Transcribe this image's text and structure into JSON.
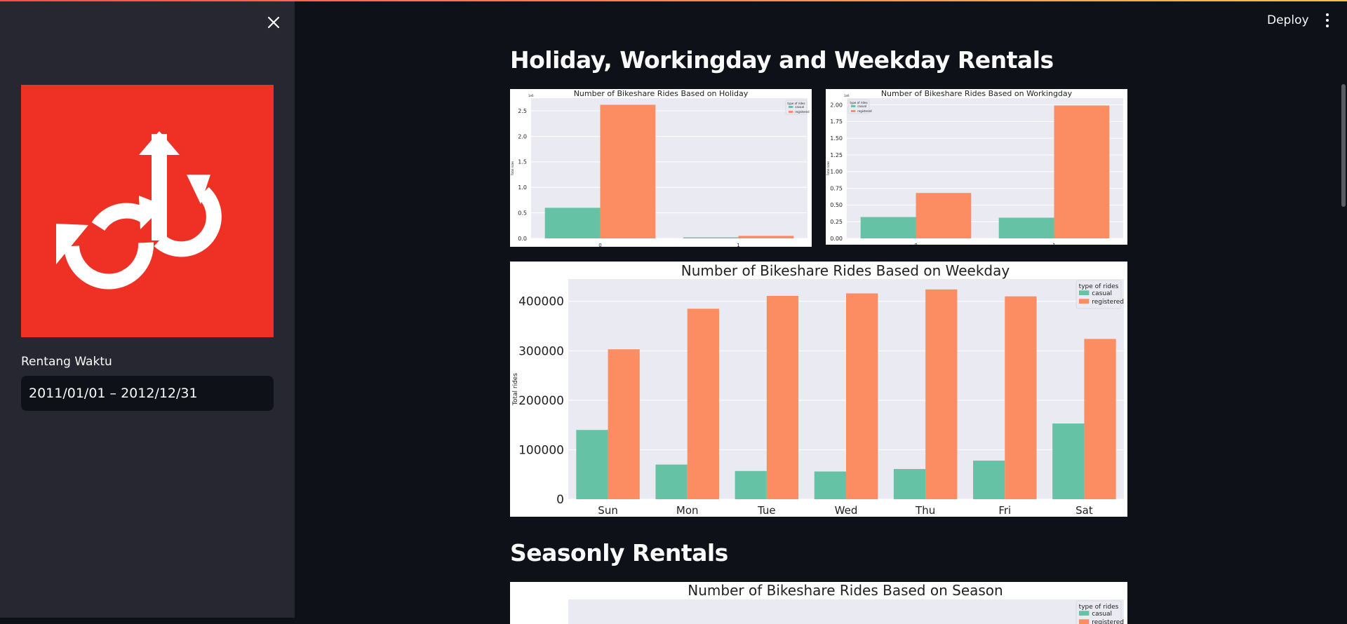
{
  "sidebar": {
    "date_label": "Rentang Waktu",
    "date_value": "2011/01/01 – 2012/12/31",
    "close_icon": "close-icon",
    "logo_icon": "bikeshare-logo-icon"
  },
  "header": {
    "deploy_label": "Deploy",
    "menu_icon": "kebab-menu-icon"
  },
  "main": {
    "section1_title": "Holiday, Workingday and Weekday Rentals",
    "section2_title": "Seasonly Rentals"
  },
  "colors": {
    "casual": "#66c2a5",
    "registered": "#fc8d62",
    "accent": "#ef3125"
  },
  "chart_data": [
    {
      "type": "bar",
      "title": "Number of Bikeshare Rides Based on Holiday",
      "ylabel": "Total rides",
      "exponent": "1e6",
      "legend_title": "type of rides",
      "legend_position": "top-right",
      "categories": [
        "0",
        "1"
      ],
      "yticks": [
        "0.0",
        "0.5",
        "1.0",
        "1.5",
        "2.0",
        "2.5"
      ],
      "ylim": [
        0,
        2.75
      ],
      "series": [
        {
          "name": "casual",
          "values": [
            0.6,
            0.02
          ]
        },
        {
          "name": "registered",
          "values": [
            2.62,
            0.05
          ]
        }
      ]
    },
    {
      "type": "bar",
      "title": "Number of Bikeshare Rides Based on Workingday",
      "ylabel": "Total rides",
      "exponent": "1e6",
      "legend_title": "type of rides",
      "legend_position": "top-left",
      "categories": [
        "0",
        "1"
      ],
      "yticks": [
        "0.00",
        "0.25",
        "0.50",
        "0.75",
        "1.00",
        "1.25",
        "1.50",
        "1.75",
        "2.00"
      ],
      "ylim": [
        0,
        2.1
      ],
      "series": [
        {
          "name": "casual",
          "values": [
            0.32,
            0.31
          ]
        },
        {
          "name": "registered",
          "values": [
            0.68,
            1.99
          ]
        }
      ]
    },
    {
      "type": "bar",
      "title": "Number of Bikeshare Rides Based on Weekday",
      "ylabel": "Total rides",
      "legend_title": "type of rides",
      "legend_position": "top-right",
      "categories": [
        "Sun",
        "Mon",
        "Tue",
        "Wed",
        "Thu",
        "Fri",
        "Sat"
      ],
      "yticks": [
        "0",
        "100000",
        "200000",
        "300000",
        "400000"
      ],
      "ylim": [
        0,
        445000
      ],
      "series": [
        {
          "name": "casual",
          "values": [
            140000,
            70000,
            57000,
            56000,
            61000,
            78000,
            153000
          ]
        },
        {
          "name": "registered",
          "values": [
            303000,
            385000,
            411000,
            416000,
            424000,
            410000,
            324000
          ]
        }
      ]
    },
    {
      "type": "bar",
      "title": "Number of Bikeshare Rides Based on Season",
      "legend_title": "type of rides",
      "legend_position": "top-right",
      "series": [
        {
          "name": "casual",
          "values": []
        },
        {
          "name": "registered",
          "values": []
        }
      ]
    }
  ]
}
